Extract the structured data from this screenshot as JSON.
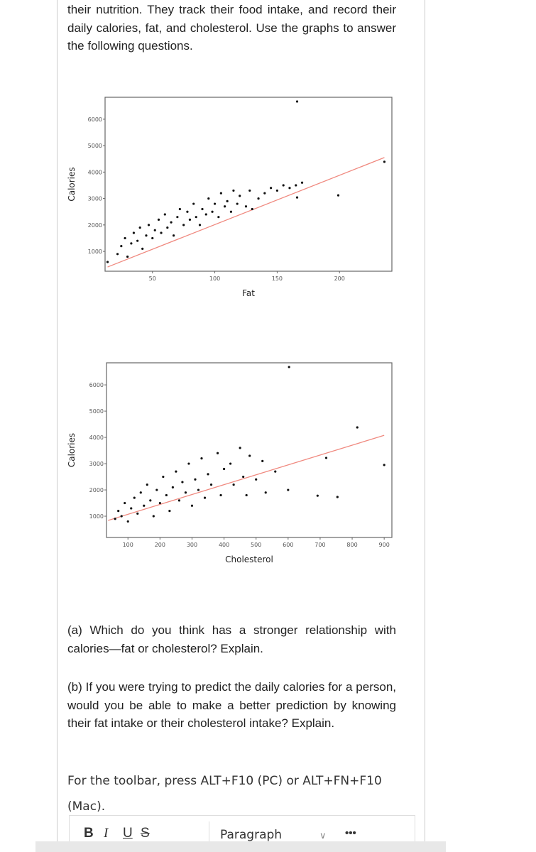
{
  "document": {
    "intro": "their nutrition. They track their food intake, and record their daily calories, fat, and cholesterol.  Use the graphs to answer the following questions.",
    "question_a": "(a) Which do you think has a stronger relationship with calories—fat or cholesterol? Explain.",
    "question_b": "(b) If you were trying to predict the daily calories for a person, would you be able to make a better prediction by knowing their fat intake or their cholesterol intake? Explain.",
    "toolbar_note": "For the toolbar, press ALT+F10 (PC) or ALT+FN+F10 (Mac)."
  },
  "chart_data": [
    {
      "type": "scatter",
      "x_label": "Fat",
      "y_label": "Calories",
      "color": "#111111",
      "x": [
        22,
        25,
        28,
        30,
        33,
        35,
        38,
        40,
        42,
        45,
        47,
        50,
        52,
        55,
        57,
        60,
        62,
        65,
        67,
        70,
        72,
        75,
        78,
        80,
        83,
        85,
        88,
        90,
        93,
        95,
        98,
        100,
        103,
        105,
        108,
        110,
        113,
        115,
        118,
        120,
        125,
        128,
        130,
        135,
        140,
        145,
        150,
        155,
        160,
        165,
        166,
        199,
        236,
        166,
        14,
        170
      ],
      "values": [
        900,
        1200,
        1500,
        800,
        1300,
        1700,
        1400,
        1900,
        1100,
        1600,
        2000,
        1500,
        1800,
        2200,
        1700,
        2400,
        1900,
        2100,
        1600,
        2300,
        2600,
        2000,
        2500,
        2200,
        2800,
        2300,
        2000,
        2600,
        2400,
        3000,
        2500,
        2800,
        2300,
        3200,
        2700,
        2900,
        2500,
        3300,
        2800,
        3100,
        2700,
        3300,
        2600,
        3000,
        3200,
        3400,
        3300,
        3500,
        3400,
        3500,
        3040,
        3120,
        4390,
        6670,
        600,
        3600
      ],
      "trend_line": {
        "x": [
          14,
          236
        ],
        "values": [
          410,
          4550
        ],
        "color": "#f08a80"
      },
      "xlim": [
        12,
        242
      ],
      "ylim": [
        250,
        6830
      ],
      "xticks": [
        50,
        100,
        150,
        200
      ],
      "yticks": [
        1000,
        2000,
        3000,
        4000,
        5000,
        6000
      ]
    },
    {
      "type": "scatter",
      "x_label": "Cholesterol",
      "y_label": "Calories",
      "color": "#111111",
      "x": [
        60,
        70,
        80,
        90,
        100,
        110,
        120,
        130,
        140,
        150,
        160,
        170,
        180,
        190,
        200,
        210,
        220,
        230,
        240,
        250,
        260,
        270,
        280,
        290,
        300,
        310,
        320,
        330,
        340,
        350,
        360,
        380,
        390,
        400,
        420,
        430,
        450,
        460,
        470,
        480,
        500,
        520,
        530,
        560,
        600,
        603,
        692,
        719,
        754,
        816,
        900
      ],
      "values": [
        900,
        1200,
        1000,
        1500,
        800,
        1300,
        1700,
        1100,
        1900,
        1400,
        2200,
        1600,
        1000,
        2000,
        1500,
        2500,
        1800,
        1200,
        2100,
        2700,
        1600,
        2300,
        1900,
        3000,
        1400,
        2400,
        2000,
        3200,
        1700,
        2600,
        2200,
        3400,
        1800,
        2800,
        3000,
        2200,
        3600,
        2500,
        1800,
        3300,
        2400,
        3100,
        1900,
        2700,
        2000,
        6680,
        1780,
        3220,
        1730,
        4380,
        2950
      ],
      "trend_line": {
        "x": [
          38,
          900
        ],
        "values": [
          840,
          4080
        ],
        "color": "#f08a80"
      },
      "xlim": [
        33,
        924
      ],
      "ylim": [
        190,
        6840
      ],
      "xticks": [
        100,
        200,
        300,
        400,
        500,
        600,
        700,
        800,
        900
      ],
      "yticks": [
        1000,
        2000,
        3000,
        4000,
        5000,
        6000
      ]
    }
  ],
  "toolbar": {
    "bold": "B",
    "italic": "I",
    "underline": "U",
    "strike": "S",
    "block_format": "Paragraph"
  }
}
